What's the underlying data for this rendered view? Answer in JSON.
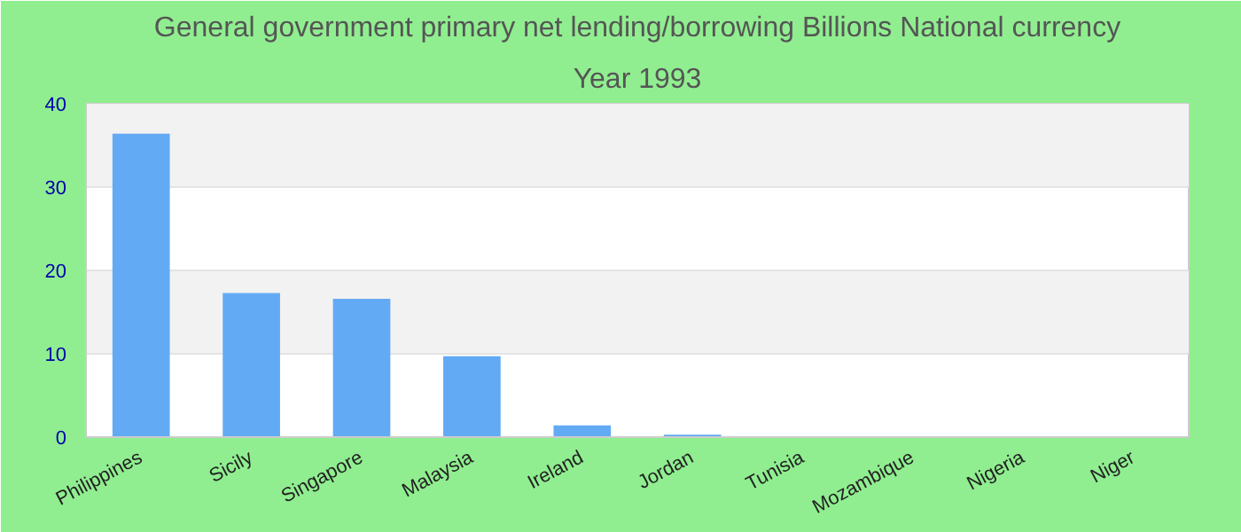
{
  "chart_data": {
    "type": "bar",
    "title": "General government primary net lending/borrowing Billions National currency",
    "subtitle": "Year 1993",
    "categories": [
      "Philippines",
      "Sicily",
      "Singapore",
      "Malaysia",
      "Ireland",
      "Jordan",
      "Tunisia",
      "Mozambique",
      "Nigeria",
      "Niger"
    ],
    "values": [
      36.4,
      17.3,
      16.6,
      9.7,
      1.4,
      0.3,
      0,
      0,
      0,
      0
    ],
    "color": "#63aaf5",
    "ylim": [
      0,
      40
    ],
    "yticks": [
      0,
      10,
      20,
      30,
      40
    ],
    "grid": "y"
  }
}
